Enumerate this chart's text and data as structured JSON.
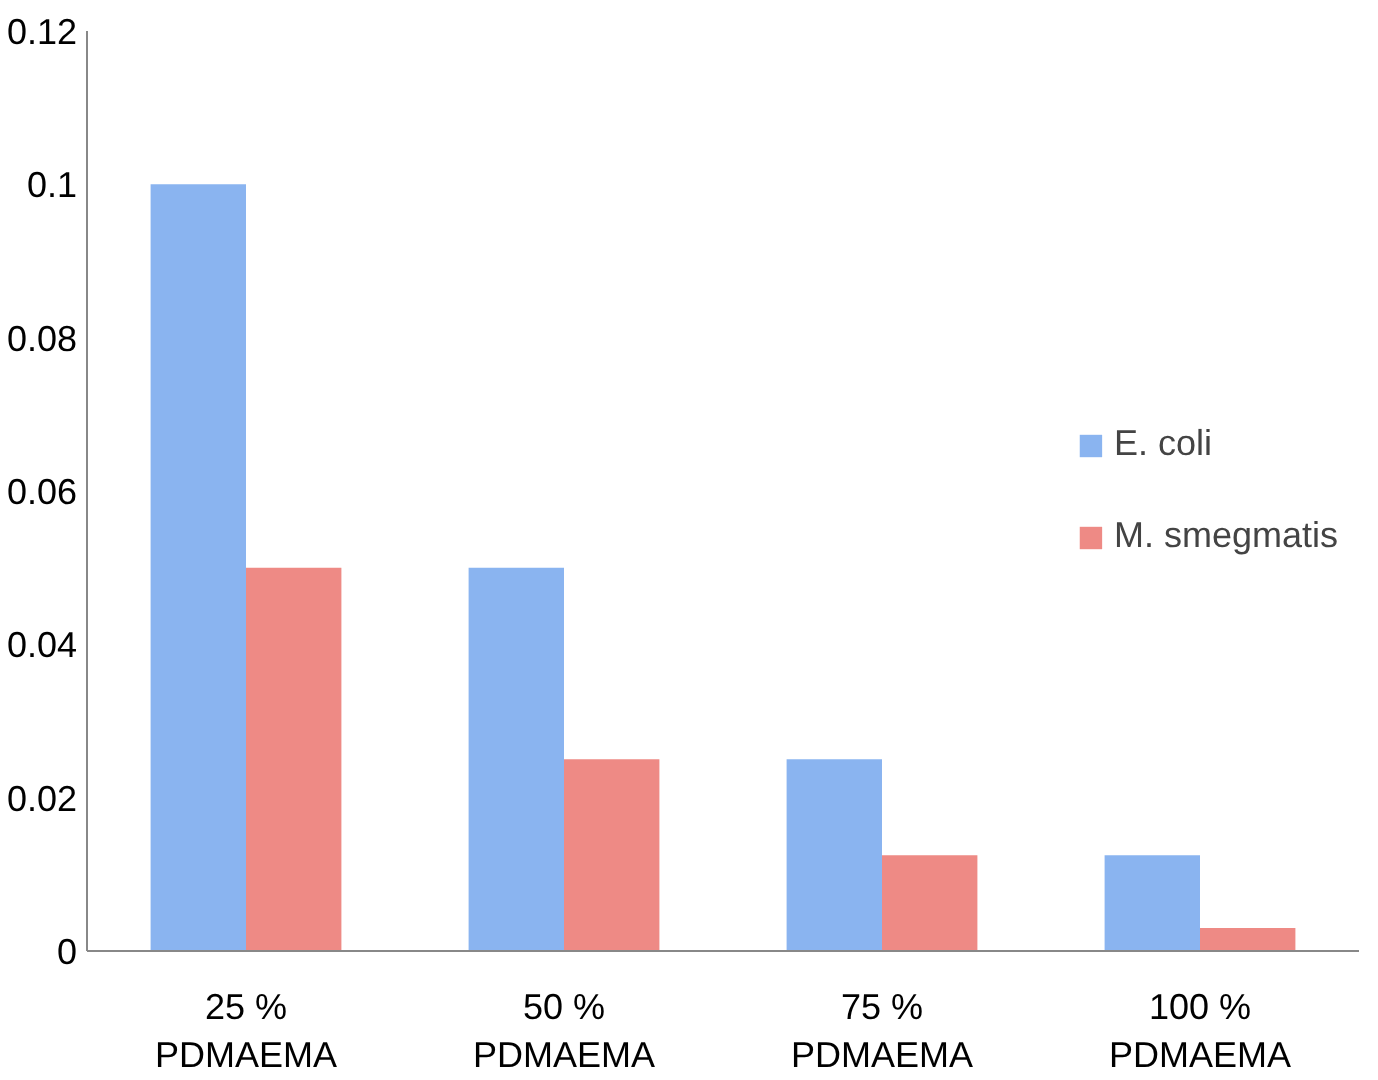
{
  "chart_data": {
    "type": "bar",
    "categories": [
      "25 %\nPDMAEMA",
      "50 %\nPDMAEMA",
      "75 %\nPDMAEMA",
      "100 %\nPDMAEMA"
    ],
    "series": [
      {
        "name": "E. coli",
        "color": "#8ab4f0",
        "values": [
          0.1,
          0.05,
          0.025,
          0.0125
        ]
      },
      {
        "name": "M. smegmatis",
        "color": "#ee8a85",
        "values": [
          0.05,
          0.025,
          0.0125,
          0.003
        ]
      }
    ],
    "ylim": [
      0,
      0.12
    ],
    "yticks": [
      0,
      0.02,
      0.04,
      0.06,
      0.08,
      0.1,
      0.12
    ],
    "grid": false,
    "legend": "right"
  }
}
